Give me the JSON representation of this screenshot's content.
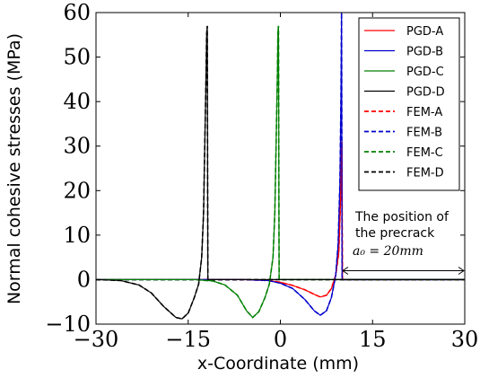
{
  "chart_data": {
    "type": "line",
    "xlabel": "x-Coordinate (mm)",
    "ylabel": "Normal cohesive stresses (MPa)",
    "xlim": [
      -30,
      30
    ],
    "ylim": [
      -10,
      60
    ],
    "x_ticks": [
      -30,
      -15,
      0,
      15,
      30
    ],
    "y_ticks": [
      -10,
      0,
      10,
      20,
      30,
      40,
      50,
      60
    ],
    "x_tick_labels": [
      "−30",
      "−15",
      "0",
      "15",
      "30"
    ],
    "y_tick_labels": [
      "−10",
      "0",
      "10",
      "20",
      "30",
      "40",
      "50",
      "60"
    ],
    "grid": false,
    "legend_position": "top-right",
    "series": [
      {
        "name": "PGD-A",
        "color": "#ff0000",
        "dash": "solid",
        "x": [
          -30,
          -6,
          -2,
          0,
          2,
          4,
          5.5,
          6.5,
          7.5,
          8.3,
          9,
          9.5,
          9.8,
          10,
          10.1,
          30
        ],
        "y": [
          0,
          0,
          -0.2,
          -0.6,
          -1.3,
          -2.3,
          -3.3,
          -3.9,
          -3.5,
          -2,
          1,
          6,
          18,
          31,
          0,
          0
        ]
      },
      {
        "name": "PGD-B",
        "color": "#0000cc",
        "dash": "solid",
        "x": [
          -30,
          -6,
          -2,
          0,
          2,
          4,
          5.5,
          6.5,
          7.5,
          8.3,
          9,
          9.4,
          9.7,
          9.85,
          9.95,
          10.05,
          30
        ],
        "y": [
          0,
          0,
          -0.2,
          -0.8,
          -2,
          -4.5,
          -7,
          -8,
          -7,
          -4,
          1,
          8,
          22,
          40,
          60,
          0,
          0
        ]
      },
      {
        "name": "PGD-C",
        "color": "#008000",
        "dash": "solid",
        "x": [
          -30,
          -14,
          -11,
          -9,
          -7,
          -5.5,
          -4.5,
          -3.5,
          -2.5,
          -1.8,
          -1.2,
          -0.9,
          -0.7,
          -0.5,
          -0.4,
          -0.3,
          -0.2,
          30
        ],
        "y": [
          0,
          0,
          -0.3,
          -1.2,
          -3.5,
          -7,
          -8.5,
          -7.2,
          -4,
          -1,
          5,
          15,
          30,
          45,
          56,
          57,
          0,
          0
        ]
      },
      {
        "name": "PGD-D",
        "color": "#000000",
        "dash": "solid",
        "x": [
          -30,
          -26,
          -23,
          -21,
          -19,
          -17,
          -16,
          -15,
          -14,
          -13.3,
          -12.8,
          -12.5,
          -12.3,
          -12.1,
          -12,
          -11.9,
          -11.8,
          30
        ],
        "y": [
          0,
          -0.2,
          -1.2,
          -3,
          -6,
          -8.5,
          -8.8,
          -7.5,
          -4,
          -1,
          5,
          15,
          30,
          45,
          55,
          57,
          0,
          0
        ]
      },
      {
        "name": "FEM-A",
        "color": "#ff0000",
        "dash": "dashed",
        "x": [
          -30,
          -6,
          -2,
          0,
          2,
          4,
          5.5,
          6.5,
          7.5,
          8.3,
          9,
          9.5,
          9.8,
          10,
          10.1,
          30
        ],
        "y": [
          0,
          0,
          -0.2,
          -0.6,
          -1.3,
          -2.3,
          -3.3,
          -3.9,
          -3.5,
          -2,
          1,
          6,
          18,
          31,
          0,
          0
        ]
      },
      {
        "name": "FEM-B",
        "color": "#0000cc",
        "dash": "dashed",
        "x": [
          -30,
          -6,
          -2,
          0,
          2,
          4,
          5.5,
          6.5,
          7.5,
          8.3,
          9,
          9.4,
          9.7,
          9.85,
          9.95,
          10.05,
          30
        ],
        "y": [
          0,
          0,
          -0.2,
          -0.8,
          -2,
          -4.5,
          -7,
          -8,
          -7,
          -4,
          1,
          8,
          22,
          40,
          60,
          0,
          0
        ]
      },
      {
        "name": "FEM-C",
        "color": "#008000",
        "dash": "dashed",
        "x": [
          -30,
          -14,
          -11,
          -9,
          -7,
          -5.5,
          -4.5,
          -3.5,
          -2.5,
          -1.8,
          -1.2,
          -0.9,
          -0.7,
          -0.5,
          -0.4,
          -0.3,
          -0.2,
          30
        ],
        "y": [
          0,
          0,
          -0.3,
          -1.2,
          -3.5,
          -7,
          -8.5,
          -7.2,
          -4,
          -1,
          5,
          15,
          30,
          45,
          56,
          57,
          0,
          0
        ]
      },
      {
        "name": "FEM-D",
        "color": "#000000",
        "dash": "dashed",
        "x": [
          -30,
          -26,
          -23,
          -21,
          -19,
          -17,
          -16,
          -15,
          -14,
          -13.3,
          -12.8,
          -12.5,
          -12.3,
          -12.1,
          -12,
          -11.9,
          -11.8,
          30
        ],
        "y": [
          0,
          -0.2,
          -1.2,
          -3,
          -6,
          -8.5,
          -8.8,
          -7.5,
          -4,
          -1,
          5,
          15,
          30,
          45,
          55,
          57,
          0,
          0
        ]
      }
    ],
    "annotation": {
      "line1": "The position of",
      "line2": "the precrack",
      "math": "a₀ = 20mm",
      "x_from": 10,
      "x_to": 30,
      "y": 2
    }
  }
}
